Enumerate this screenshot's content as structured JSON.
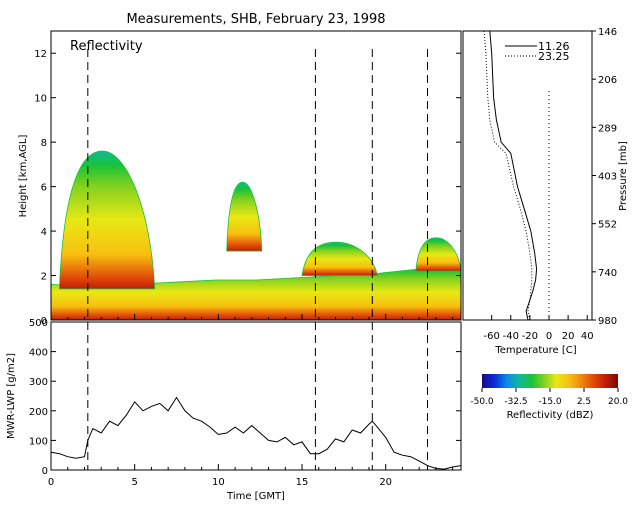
{
  "title": "Measurements, SHB, February 23, 1998",
  "colors": {
    "reflectivity_scale": [
      "#1a0a8c",
      "#0a2ad8",
      "#0a8ae8",
      "#10b89a",
      "#18c23a",
      "#80d020",
      "#e8e814",
      "#f8c010",
      "#f08a10",
      "#e04a08",
      "#c01c08",
      "#7a0a04"
    ]
  },
  "chart_data": [
    {
      "type": "heatmap",
      "panel_label": "Reflectivity",
      "ylabel": "Height [km,AGL]",
      "xlim": [
        0,
        24.5
      ],
      "ylim": [
        0,
        13
      ],
      "yticks": [
        "0",
        "2",
        "4",
        "6",
        "8",
        "10",
        "12"
      ],
      "dashed_times": [
        2.2,
        15.8,
        19.2,
        22.5
      ],
      "echo_layers": [
        {
          "t_start": 0.0,
          "t_end": 24.5,
          "base_km": 0.0,
          "top_km": [
            1.6,
            1.5,
            1.6,
            1.7,
            1.8,
            1.8,
            1.9,
            2.0,
            2.1,
            2.3,
            2.5
          ]
        },
        {
          "t_start": 0.5,
          "t_end": 6.2,
          "base_km": 1.4,
          "top_km": 7.6
        },
        {
          "t_start": 10.5,
          "t_end": 12.6,
          "base_km": 3.1,
          "top_km": 6.2
        },
        {
          "t_start": 15.0,
          "t_end": 19.5,
          "base_km": 2.0,
          "top_km": 3.5
        },
        {
          "t_start": 21.8,
          "t_end": 24.5,
          "base_km": 2.2,
          "top_km": 3.7
        }
      ]
    },
    {
      "type": "line",
      "xlabel": "Temperature [C]",
      "ylabel": "Pressure [mb]",
      "xticks": [
        "-60",
        "-40",
        "-20",
        "0",
        "20",
        "40"
      ],
      "xlim": [
        -90,
        45
      ],
      "pressure_ticks": [
        "146",
        "206",
        "289",
        "403",
        "552",
        "740",
        "980"
      ],
      "series": [
        {
          "name": "11.26",
          "style": "solid",
          "x": [
            -62,
            -60,
            -58,
            -55,
            -50,
            -40,
            -33,
            -26,
            -19,
            -15,
            -13,
            -14,
            -17,
            -20,
            -24,
            -22
          ],
          "h_km": [
            13,
            12,
            10,
            9,
            8,
            7.5,
            6,
            5,
            4,
            3,
            2.3,
            1.8,
            1.3,
            0.9,
            0.4,
            0
          ]
        },
        {
          "name": "23.25",
          "style": "dotted",
          "x": [
            -68,
            -66,
            -64,
            -62,
            -57,
            -45,
            -37,
            -30,
            -24,
            -20,
            -18,
            -18,
            -19,
            -20,
            -22,
            -20
          ],
          "h_km": [
            13,
            12,
            10,
            9,
            8,
            7.5,
            6,
            5,
            4,
            3,
            2.3,
            1.8,
            1.3,
            0.9,
            0.4,
            0
          ]
        }
      ],
      "reference_line_x": 0
    },
    {
      "type": "line",
      "ylabel": "MWR-LWP [g/m2]",
      "xlabel": "Time [GMT]",
      "xlim": [
        0,
        24.5
      ],
      "ylim": [
        0,
        500
      ],
      "xticks": [
        "0",
        "5",
        "10",
        "15",
        "20"
      ],
      "yticks": [
        "0",
        "100",
        "200",
        "300",
        "400",
        "500"
      ],
      "dashed_times": [
        2.2,
        15.8,
        19.2,
        22.5
      ],
      "x": [
        0.0,
        0.5,
        1.0,
        1.5,
        2.0,
        2.2,
        2.5,
        3.0,
        3.5,
        4.0,
        4.5,
        5.0,
        5.5,
        6.0,
        6.5,
        7.0,
        7.5,
        8.0,
        8.5,
        9.0,
        9.5,
        10.0,
        10.5,
        11.0,
        11.5,
        12.0,
        12.5,
        13.0,
        13.5,
        14.0,
        14.5,
        15.0,
        15.5,
        16.0,
        16.5,
        17.0,
        17.5,
        18.0,
        18.5,
        19.0,
        19.2,
        19.5,
        20.0,
        20.5,
        21.0,
        21.5,
        22.0,
        22.5,
        23.0,
        23.5,
        24.0,
        24.5
      ],
      "values": [
        60,
        55,
        45,
        40,
        45,
        100,
        140,
        125,
        165,
        150,
        185,
        230,
        200,
        215,
        225,
        200,
        245,
        200,
        175,
        165,
        145,
        120,
        125,
        145,
        125,
        150,
        125,
        100,
        95,
        110,
        85,
        95,
        55,
        55,
        70,
        105,
        95,
        135,
        125,
        155,
        165,
        145,
        110,
        60,
        50,
        45,
        30,
        15,
        5,
        3,
        10,
        15
      ]
    },
    {
      "type": "colorbar",
      "label": "Reflectivity (dBZ)",
      "range": [
        -50,
        20
      ],
      "ticks": [
        "-50.0",
        "-32.5",
        "-15.0",
        "2.5",
        "20.0"
      ]
    }
  ]
}
